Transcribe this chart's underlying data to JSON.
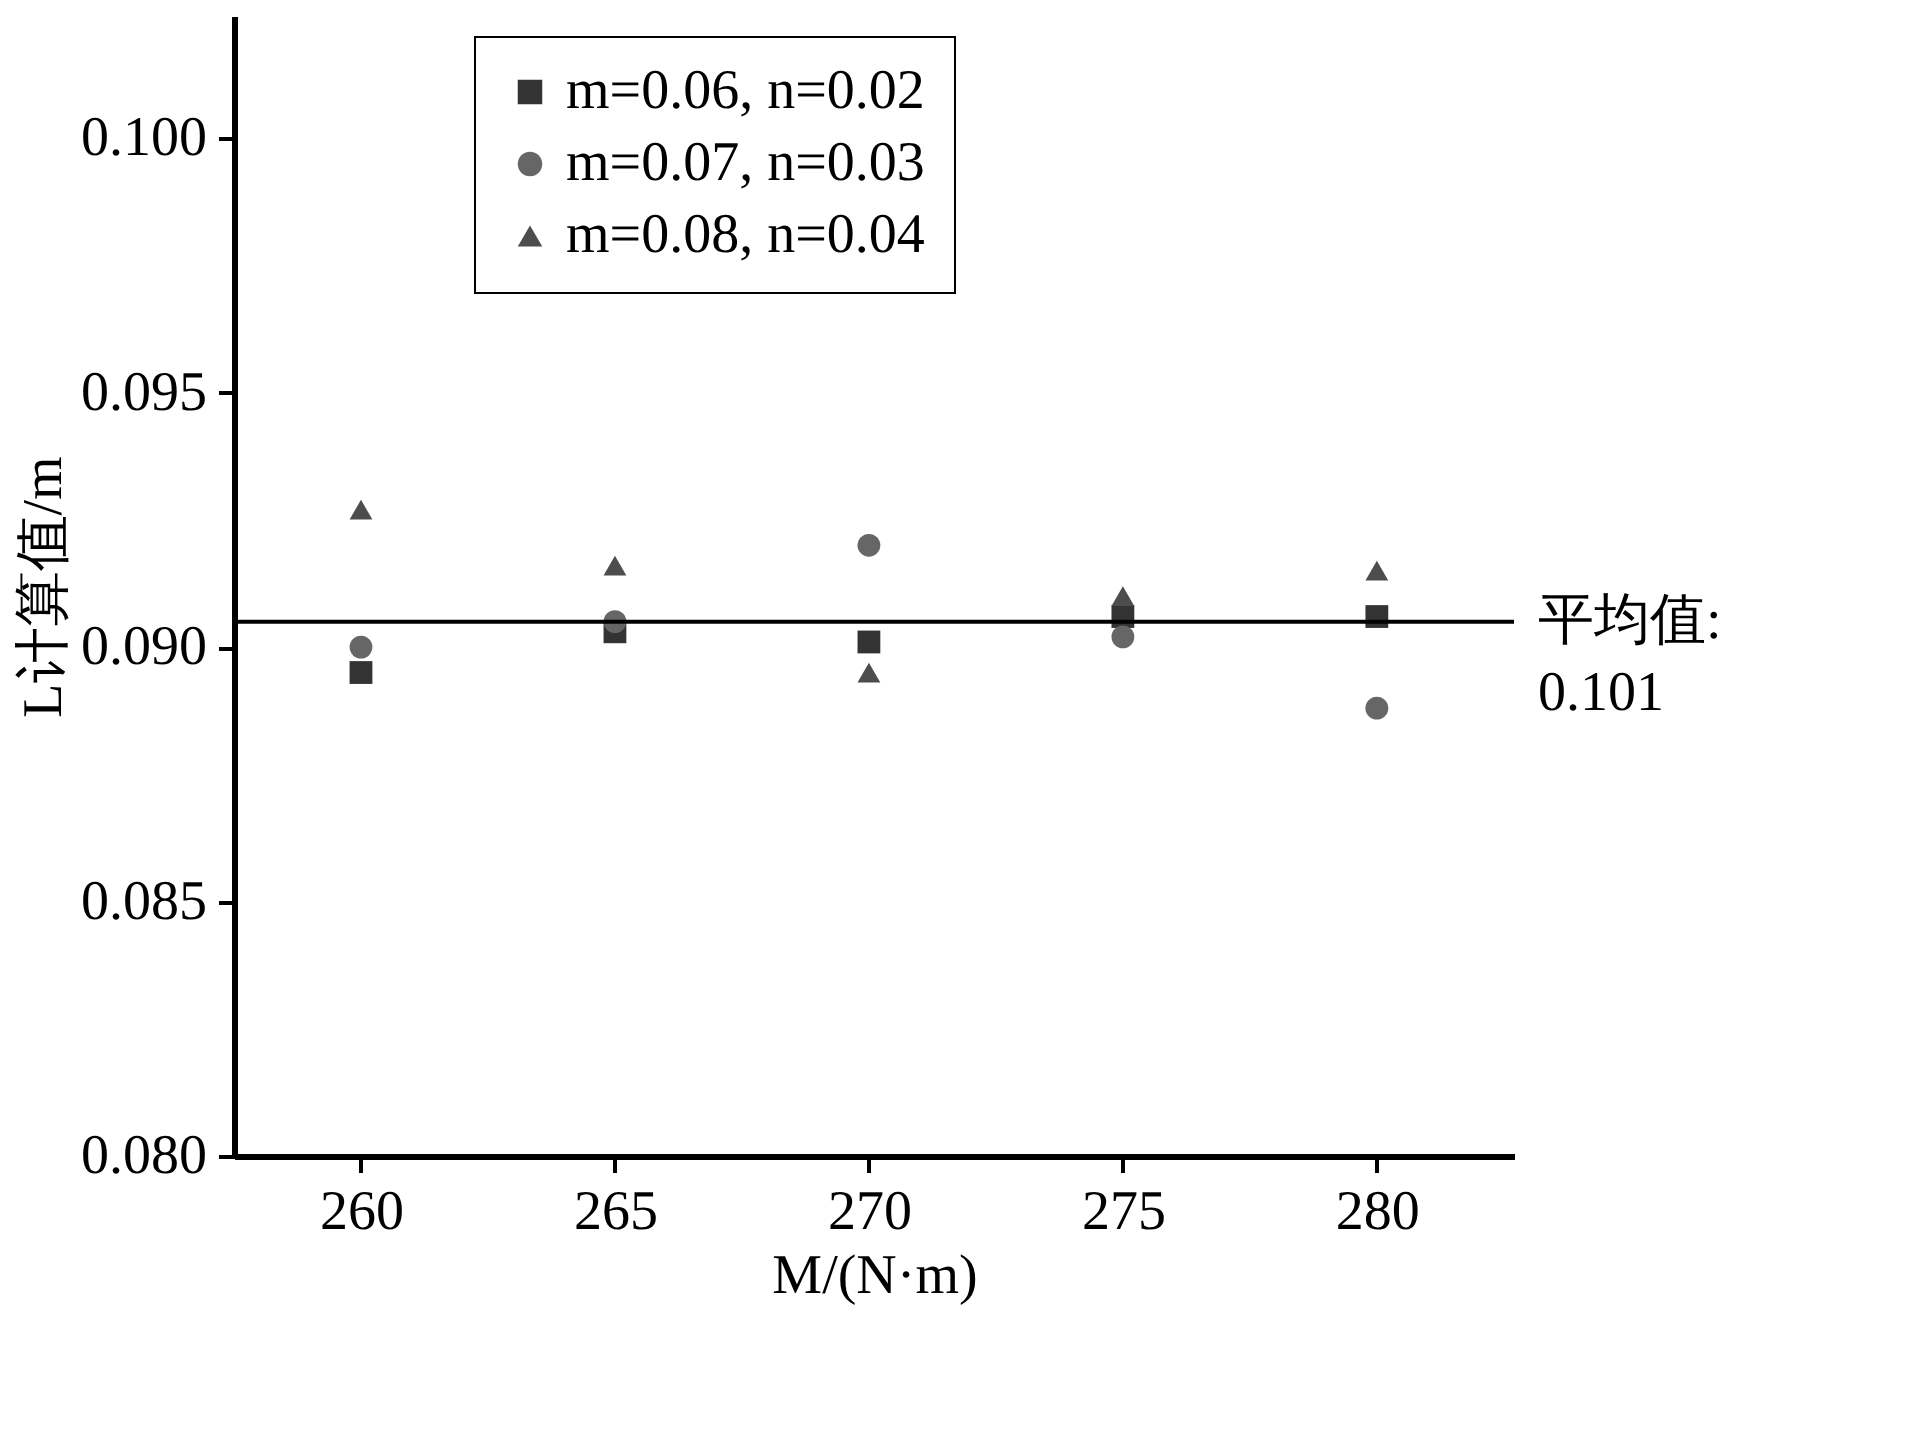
{
  "chart_data": {
    "type": "scatter",
    "xlabel": "M/(N·m)",
    "ylabel": "L计算值/m",
    "x": [
      260,
      265,
      270,
      275,
      280
    ],
    "series": [
      {
        "name": "m=0.06, n=0.02",
        "color": "#333333",
        "marker": "square",
        "values": [
          0.0895,
          0.0903,
          0.0901,
          0.0906,
          0.0906
        ]
      },
      {
        "name": "m=0.07, n=0.03",
        "color": "#666666",
        "marker": "circle",
        "values": [
          0.09,
          0.0905,
          0.092,
          0.0902,
          0.0888
        ]
      },
      {
        "name": "m=0.08, n=0.04",
        "color": "#4d4d4d",
        "marker": "triangle",
        "values": [
          0.0927,
          0.0916,
          0.0895,
          0.091,
          0.0915
        ]
      }
    ],
    "xlim": [
      257.5,
      282.7
    ],
    "xticks": [
      260,
      265,
      270,
      275,
      280
    ],
    "ylim": [
      0.08,
      0.1024
    ],
    "yticks": [
      {
        "value": 0.08,
        "label": "0.080"
      },
      {
        "value": 0.085,
        "label": "0.085"
      },
      {
        "value": 0.09,
        "label": "0.090"
      },
      {
        "value": 0.095,
        "label": "0.095"
      },
      {
        "value": 0.1,
        "label": "0.100"
      }
    ],
    "ref_lines": [
      {
        "axis": "y",
        "value": 0.0905,
        "color": "#000000"
      }
    ],
    "annotations": [
      "平均值:\n0.101"
    ],
    "grid": false,
    "legend": "top"
  }
}
